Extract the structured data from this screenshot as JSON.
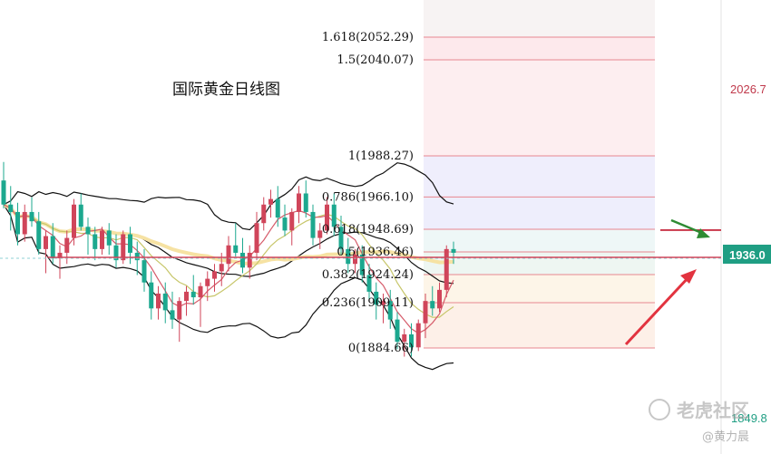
{
  "chart_data": {
    "type": "candlestick",
    "title": "国际黄金日线图",
    "ylim": [
      1849.8,
      2062
    ],
    "fib_levels": [
      {
        "label": "1.618(2052.29)",
        "value": 2052.29,
        "fill": "#fde9ec"
      },
      {
        "label": "1.5(2040.07)",
        "value": 2040.07,
        "fill": "#fdeef0"
      },
      {
        "label": "1(1988.27)",
        "value": 1988.27,
        "fill": "#efeefc"
      },
      {
        "label": "0.786(1966.10)",
        "value": 1966.1,
        "fill": "#eeeefc"
      },
      {
        "label": "0.618(1948.69)",
        "value": 1948.69,
        "fill": "#eef7f7"
      },
      {
        "label": "0.5(1936.46)",
        "value": 1936.46,
        "fill": "#eef6f2"
      },
      {
        "label": "0.382(1924.24)",
        "value": 1924.24,
        "fill": "#fdf5e8"
      },
      {
        "label": "0.236(1909.11)",
        "value": 1909.11,
        "fill": "#fdf0e8"
      },
      {
        "label": "0(1884.66)",
        "value": 1884.66,
        "fill": "#fdece6"
      }
    ],
    "price_labels": {
      "upper": "2026.7",
      "current": "1936.0",
      "lower": "1849.8"
    },
    "current_price": 1936.0,
    "candles": [
      [
        1975,
        1985,
        1960,
        1962
      ],
      [
        1962,
        1972,
        1948,
        1958
      ],
      [
        1958,
        1963,
        1940,
        1946
      ],
      [
        1946,
        1962,
        1942,
        1958
      ],
      [
        1958,
        1966,
        1950,
        1953
      ],
      [
        1953,
        1958,
        1935,
        1938
      ],
      [
        1938,
        1948,
        1925,
        1945
      ],
      [
        1945,
        1952,
        1930,
        1933
      ],
      [
        1933,
        1940,
        1922,
        1936
      ],
      [
        1936,
        1948,
        1930,
        1944
      ],
      [
        1944,
        1965,
        1940,
        1962
      ],
      [
        1962,
        1968,
        1948,
        1950
      ],
      [
        1950,
        1955,
        1935,
        1946
      ],
      [
        1946,
        1950,
        1932,
        1938
      ],
      [
        1938,
        1950,
        1935,
        1948
      ],
      [
        1948,
        1952,
        1935,
        1940
      ],
      [
        1940,
        1946,
        1928,
        1932
      ],
      [
        1932,
        1948,
        1930,
        1946
      ],
      [
        1946,
        1950,
        1930,
        1936
      ],
      [
        1936,
        1942,
        1924,
        1932
      ],
      [
        1932,
        1938,
        1915,
        1920
      ],
      [
        1920,
        1926,
        1900,
        1906
      ],
      [
        1906,
        1918,
        1900,
        1914
      ],
      [
        1914,
        1920,
        1898,
        1905
      ],
      [
        1905,
        1915,
        1895,
        1900
      ],
      [
        1900,
        1912,
        1888,
        1910
      ],
      [
        1910,
        1918,
        1902,
        1915
      ],
      [
        1915,
        1924,
        1908,
        1912
      ],
      [
        1912,
        1920,
        1896,
        1918
      ],
      [
        1918,
        1926,
        1910,
        1922
      ],
      [
        1922,
        1930,
        1915,
        1926
      ],
      [
        1926,
        1936,
        1918,
        1930
      ],
      [
        1930,
        1945,
        1926,
        1940
      ],
      [
        1940,
        1952,
        1934,
        1936
      ],
      [
        1936,
        1944,
        1925,
        1928
      ],
      [
        1928,
        1940,
        1922,
        1936
      ],
      [
        1936,
        1958,
        1932,
        1952
      ],
      [
        1952,
        1966,
        1948,
        1962
      ],
      [
        1962,
        1970,
        1955,
        1965
      ],
      [
        1965,
        1972,
        1950,
        1955
      ],
      [
        1955,
        1962,
        1945,
        1948
      ],
      [
        1948,
        1960,
        1940,
        1958
      ],
      [
        1958,
        1972,
        1952,
        1968
      ],
      [
        1968,
        1975,
        1955,
        1958
      ],
      [
        1958,
        1962,
        1940,
        1944
      ],
      [
        1944,
        1952,
        1938,
        1948
      ],
      [
        1948,
        1966,
        1946,
        1962
      ],
      [
        1962,
        1968,
        1945,
        1950
      ],
      [
        1950,
        1956,
        1935,
        1938
      ],
      [
        1938,
        1944,
        1925,
        1930
      ],
      [
        1930,
        1938,
        1925,
        1935
      ],
      [
        1935,
        1940,
        1920,
        1924
      ],
      [
        1924,
        1930,
        1910,
        1915
      ],
      [
        1915,
        1920,
        1900,
        1908
      ],
      [
        1908,
        1914,
        1898,
        1910
      ],
      [
        1910,
        1916,
        1895,
        1900
      ],
      [
        1900,
        1904,
        1884,
        1888
      ],
      [
        1888,
        1895,
        1880,
        1892
      ],
      [
        1892,
        1898,
        1880,
        1885
      ],
      [
        1885,
        1900,
        1883,
        1898
      ],
      [
        1898,
        1914,
        1890,
        1910
      ],
      [
        1910,
        1918,
        1902,
        1906
      ],
      [
        1906,
        1920,
        1904,
        1916
      ],
      [
        1916,
        1940,
        1912,
        1938
      ],
      [
        1938,
        1942,
        1930,
        1936
      ]
    ]
  },
  "annotations": {
    "watermark_brand": "老虎社区",
    "watermark_author": "@黄力晨"
  }
}
